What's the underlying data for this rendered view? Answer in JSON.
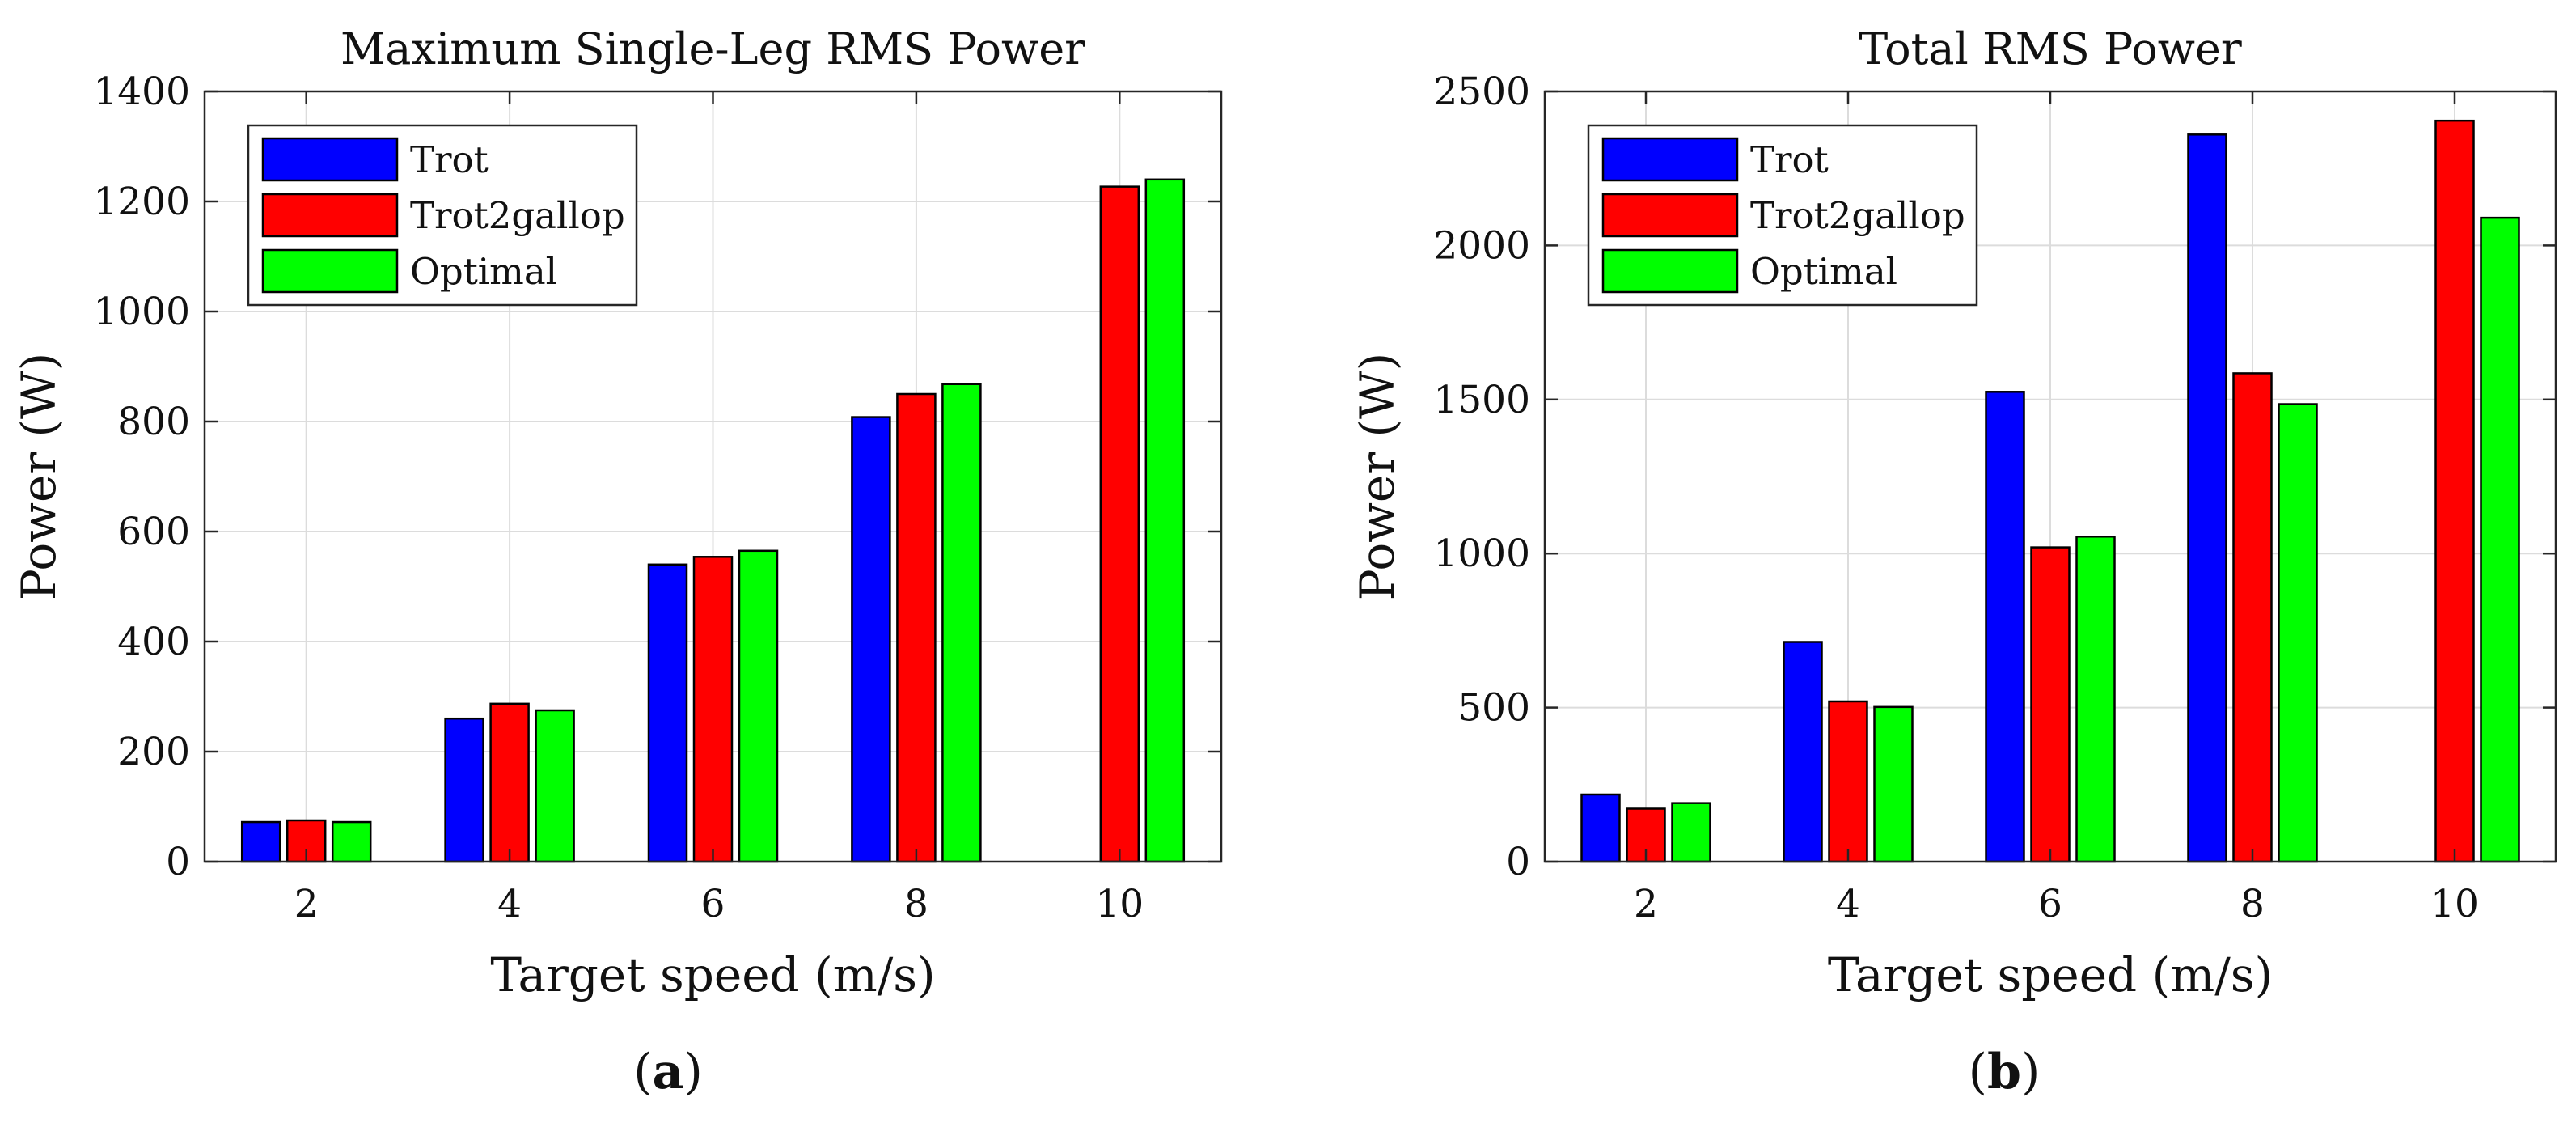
{
  "figure": {
    "panels": [
      {
        "title": "Maximum Single-Leg RMS Power",
        "caption": {
          "open": "(",
          "letter": "a",
          "close": ")"
        },
        "xlabel": "Target speed (m/s)",
        "ylabel": "Power (W)"
      },
      {
        "title": "Total RMS Power",
        "caption": {
          "open": "(",
          "letter": "b",
          "close": ")"
        },
        "xlabel": "Target speed (m/s)",
        "ylabel": "Power (W)"
      }
    ]
  },
  "chart_data": [
    {
      "type": "bar",
      "title": "Maximum Single-Leg RMS Power",
      "xlabel": "Target speed (m/s)",
      "ylabel": "Power (W)",
      "categories": [
        "2",
        "4",
        "6",
        "8",
        "10"
      ],
      "ylim": [
        0,
        1400
      ],
      "yticks": [
        "0",
        "200",
        "400",
        "600",
        "800",
        "1000",
        "1200",
        "1400"
      ],
      "grid": true,
      "legend_position": "top-left",
      "series": [
        {
          "name": "Trot",
          "color": "#0000ff",
          "values": [
            72,
            260,
            540,
            808,
            null
          ]
        },
        {
          "name": "Trot2gallop",
          "color": "#ff0000",
          "values": [
            75,
            287,
            554,
            850,
            1227
          ]
        },
        {
          "name": "Optimal",
          "color": "#00ff00",
          "values": [
            72,
            275,
            565,
            868,
            1240
          ]
        }
      ]
    },
    {
      "type": "bar",
      "title": "Total RMS Power",
      "xlabel": "Target speed (m/s)",
      "ylabel": "Power (W)",
      "categories": [
        "2",
        "4",
        "6",
        "8",
        "10"
      ],
      "ylim": [
        0,
        2500
      ],
      "yticks": [
        "0",
        "500",
        "1000",
        "1500",
        "2000",
        "2500"
      ],
      "grid": true,
      "legend_position": "top-left",
      "series": [
        {
          "name": "Trot",
          "color": "#0000ff",
          "values": [
            218,
            713,
            1525,
            2360,
            null
          ]
        },
        {
          "name": "Trot2gallop",
          "color": "#ff0000",
          "values": [
            172,
            520,
            1020,
            1585,
            2405
          ]
        },
        {
          "name": "Optimal",
          "color": "#00ff00",
          "values": [
            190,
            502,
            1055,
            1485,
            2090
          ]
        }
      ]
    }
  ]
}
